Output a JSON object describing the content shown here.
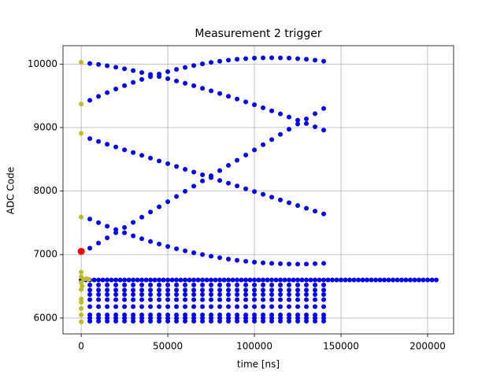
{
  "chart_data": {
    "type": "scatter",
    "title": "Measurement 2 trigger",
    "x_label": "time [ns]",
    "y_label": "ADC Code",
    "xlim": [
      -10500,
      215000
    ],
    "ylim": [
      5750,
      10290
    ],
    "xticks": [
      0,
      50000,
      100000,
      150000,
      200000
    ],
    "yticks": [
      6000,
      7000,
      8000,
      9000,
      10000
    ],
    "grid": true,
    "x": [
      5000,
      10000,
      15000,
      20000,
      25000,
      30000,
      35000,
      40000,
      45000,
      50000,
      55000,
      60000,
      65000,
      70000,
      75000,
      80000,
      85000,
      90000,
      95000,
      100000,
      105000,
      110000,
      115000,
      120000,
      125000,
      130000,
      135000,
      140000
    ],
    "series": [
      {
        "color": "#0000ff",
        "marker_size": 3,
        "values": [
          10010,
          9994,
          9974,
          9950,
          9925,
          9897,
          9867,
          9837,
          9804,
          9770,
          9734,
          9697,
          9659,
          9618,
          9578,
          9537,
          9493,
          9449,
          9404,
          9359,
          9312,
          9263,
          9215,
          9166,
          9116,
          9064,
          9013,
          8960
        ]
      },
      {
        "color": "#0000ff",
        "marker_size": 3,
        "values": [
          9430,
          9492,
          9551,
          9608,
          9661,
          9711,
          9758,
          9802,
          9843,
          9881,
          9916,
          9948,
          9977,
          10003,
          10026,
          10045,
          10062,
          10076,
          10086,
          10094,
          10098,
          10100,
          10098,
          10094,
          10086,
          10076,
          10062,
          10045
        ]
      },
      {
        "color": "#0000ff",
        "marker_size": 3,
        "values": [
          8826,
          8782,
          8738,
          8694,
          8650,
          8606,
          8563,
          8519,
          8475,
          8431,
          8387,
          8343,
          8299,
          8255,
          8211,
          8167,
          8124,
          8080,
          8036,
          7992,
          7948,
          7904,
          7860,
          7816,
          7772,
          7728,
          7684,
          7640
        ]
      },
      {
        "color": "#0000ff",
        "marker_size": 3,
        "values": [
          7100,
          7181,
          7263,
          7344,
          7426,
          7507,
          7589,
          7670,
          7752,
          7833,
          7915,
          7996,
          8078,
          8159,
          8241,
          8322,
          8404,
          8485,
          8567,
          8648,
          8730,
          8811,
          8893,
          8974,
          9056,
          9137,
          9219,
          9300
        ]
      },
      {
        "color": "#0000ff",
        "marker_size": 3,
        "values": [
          7560,
          7502,
          7447,
          7394,
          7343,
          7295,
          7250,
          7206,
          7165,
          7127,
          7091,
          7058,
          7028,
          6999,
          6973,
          6950,
          6929,
          6910,
          6894,
          6881,
          6870,
          6861,
          6855,
          6851,
          6850,
          6851,
          6855,
          6861
        ]
      },
      {
        "color": "#0000ff",
        "marker_size": 3,
        "values": [
          6520,
          6520,
          6520,
          6520,
          6520,
          6520,
          6520,
          6520,
          6520,
          6520,
          6520,
          6520,
          6520,
          6520,
          6520,
          6520,
          6520,
          6520,
          6520,
          6520,
          6520,
          6520,
          6520,
          6520,
          6520,
          6520,
          6520,
          6520
        ]
      },
      {
        "color": "#0000ff",
        "marker_size": 3,
        "values": [
          6440,
          6440,
          6440,
          6440,
          6440,
          6440,
          6440,
          6440,
          6440,
          6440,
          6440,
          6440,
          6440,
          6440,
          6440,
          6440,
          6440,
          6440,
          6440,
          6440,
          6440,
          6440,
          6440,
          6440,
          6440,
          6440,
          6440,
          6440
        ]
      },
      {
        "color": "#0000ff",
        "marker_size": 3,
        "values": [
          6370,
          6370,
          6370,
          6370,
          6370,
          6370,
          6370,
          6370,
          6370,
          6370,
          6370,
          6370,
          6370,
          6370,
          6370,
          6370,
          6370,
          6370,
          6370,
          6370,
          6370,
          6370,
          6370,
          6370,
          6370,
          6370,
          6370,
          6370
        ]
      },
      {
        "color": "#0000ff",
        "marker_size": 3,
        "values": [
          6290,
          6290,
          6290,
          6290,
          6290,
          6290,
          6290,
          6290,
          6290,
          6290,
          6290,
          6290,
          6290,
          6290,
          6290,
          6290,
          6290,
          6290,
          6290,
          6290,
          6290,
          6290,
          6290,
          6290,
          6290,
          6290,
          6290,
          6290
        ]
      },
      {
        "color": "#0000ff",
        "marker_size": 3,
        "values": [
          6180,
          6180,
          6180,
          6180,
          6180,
          6180,
          6180,
          6180,
          6180,
          6180,
          6180,
          6180,
          6180,
          6180,
          6180,
          6180,
          6180,
          6180,
          6180,
          6180,
          6180,
          6180,
          6180,
          6180,
          6180,
          6180,
          6180,
          6180
        ]
      },
      {
        "color": "#0000ff",
        "marker_size": 3,
        "values": [
          6050,
          6050,
          6050,
          6050,
          6050,
          6050,
          6050,
          6050,
          6050,
          6050,
          6050,
          6050,
          6050,
          6050,
          6050,
          6050,
          6050,
          6050,
          6050,
          6050,
          6050,
          6050,
          6050,
          6050,
          6050,
          6050,
          6050,
          6050
        ]
      },
      {
        "color": "#0000ff",
        "marker_size": 3,
        "values": [
          6000,
          6000,
          6000,
          6000,
          6000,
          6000,
          6000,
          6000,
          6000,
          6000,
          6000,
          6000,
          6000,
          6000,
          6000,
          6000,
          6000,
          6000,
          6000,
          6000,
          6000,
          6000,
          6000,
          6000,
          6000,
          6000,
          6000,
          6000
        ]
      },
      {
        "color": "#0000ff",
        "marker_size": 3,
        "values": [
          5950,
          5950,
          5950,
          5950,
          5950,
          5950,
          5950,
          5950,
          5950,
          5950,
          5950,
          5950,
          5950,
          5950,
          5950,
          5950,
          5950,
          5950,
          5950,
          5950,
          5950,
          5950,
          5950,
          5950,
          5950,
          5950,
          5950,
          5950
        ]
      },
      {
        "color": "#0000ff",
        "marker_size": 3,
        "x": [
          0,
          2500,
          5000,
          7500,
          10000,
          12500,
          15000,
          17500,
          20000,
          22500,
          25000,
          27500,
          30000,
          32500,
          35000,
          37500,
          40000,
          42500,
          45000,
          47500,
          50000,
          52500,
          55000,
          57500,
          60000,
          62500,
          65000,
          67500,
          70000,
          72500,
          75000,
          77500,
          80000,
          82500,
          85000,
          87500,
          90000,
          92500,
          95000,
          97500,
          100000,
          102500,
          105000,
          107500,
          110000,
          112500,
          115000,
          117500,
          120000,
          122500,
          125000,
          127500,
          130000,
          132500,
          135000,
          137500,
          140000,
          142500,
          145000,
          147500,
          150000,
          152500,
          155000,
          157500,
          160000,
          162500,
          165000,
          167500,
          170000,
          172500,
          175000,
          177500,
          180000,
          182500,
          185000,
          187500,
          190000,
          192500,
          195000,
          197500,
          200000,
          202500,
          205000
        ],
        "values": [
          6600,
          6600,
          6600,
          6600,
          6600,
          6600,
          6600,
          6600,
          6600,
          6600,
          6600,
          6600,
          6600,
          6600,
          6600,
          6600,
          6600,
          6600,
          6600,
          6600,
          6600,
          6600,
          6600,
          6600,
          6600,
          6600,
          6600,
          6600,
          6600,
          6600,
          6600,
          6600,
          6600,
          6600,
          6600,
          6600,
          6600,
          6600,
          6600,
          6600,
          6600,
          6600,
          6600,
          6600,
          6600,
          6600,
          6600,
          6600,
          6600,
          6600,
          6600,
          6600,
          6600,
          6600,
          6600,
          6600,
          6600,
          6600,
          6600,
          6600,
          6600,
          6600,
          6600,
          6600,
          6600,
          6600,
          6600,
          6600,
          6600,
          6600,
          6600,
          6600,
          6600,
          6600,
          6600,
          6600,
          6600,
          6600,
          6600,
          6600,
          6600,
          6600,
          6600
        ]
      },
      {
        "color": "#bcbd22",
        "marker_size": 3,
        "x": [
          0,
          0,
          0,
          0,
          0,
          0,
          1500,
          3000,
          4500,
          0,
          500,
          0,
          0,
          0,
          0,
          0,
          0
        ],
        "values": [
          10030,
          9370,
          8910,
          7590,
          6720,
          6650,
          6610,
          6620,
          6610,
          6560,
          6500,
          6450,
          6300,
          6250,
          6150,
          6050,
          5940
        ]
      },
      {
        "color": "#ff0000",
        "marker_size": 4.5,
        "x": [
          0
        ],
        "values": [
          7050
        ]
      }
    ]
  }
}
